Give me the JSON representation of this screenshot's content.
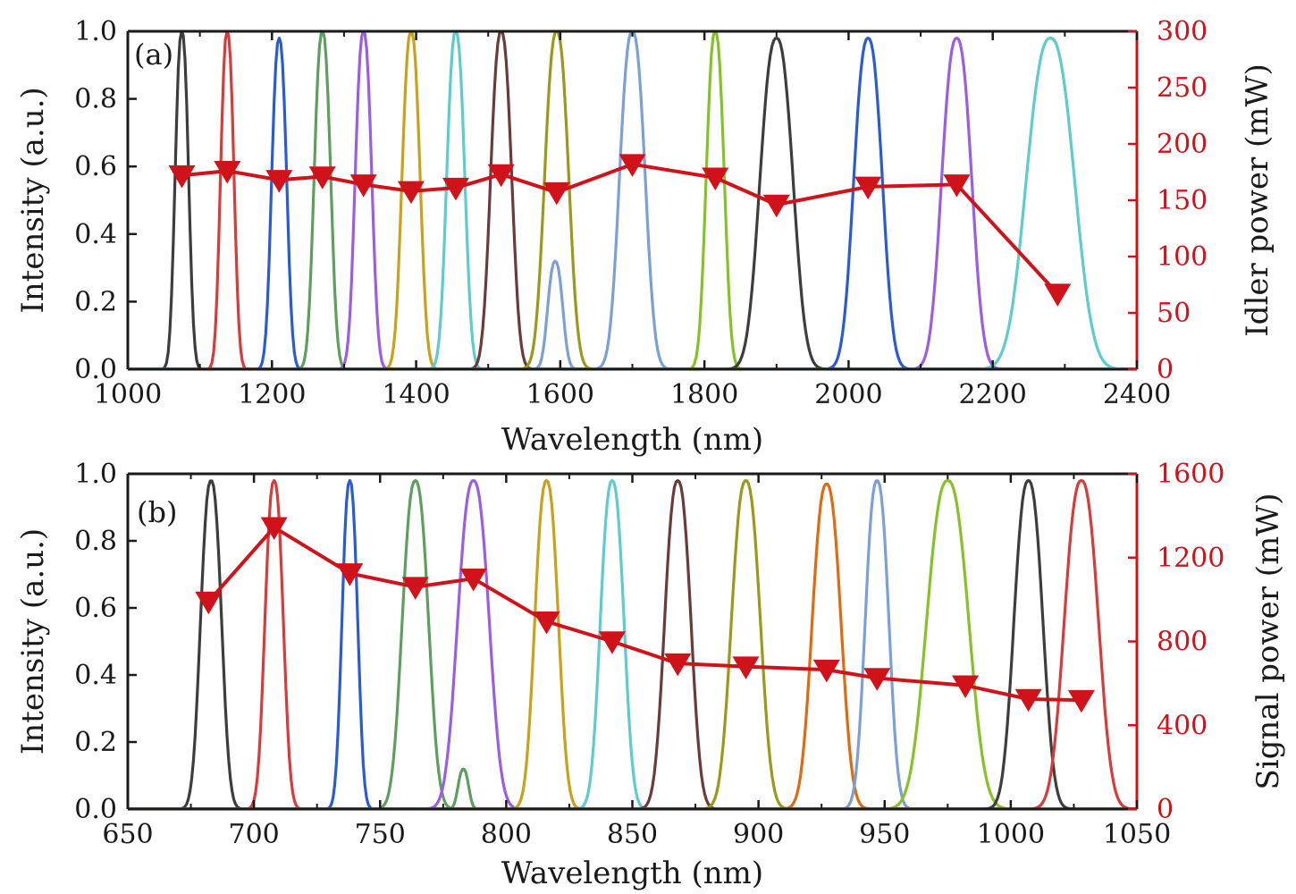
{
  "colors": {
    "axis": "#1a1a1a",
    "power": "#d0121b",
    "spectra": [
      "#3d3d3d",
      "#d93a3a",
      "#2a5bd7",
      "#5e9e5e",
      "#9b5de5",
      "#c9a11b",
      "#5ccccc",
      "#6b3a3a",
      "#9a9a1a",
      "#7aa0d6",
      "#86c226",
      "#e06a10"
    ]
  },
  "chart_data": [
    {
      "panel": "(a)",
      "type": "line",
      "xlabel": "Wavelength (nm)",
      "ylabel": "Intensity (a.u.)",
      "y2label": "Idler power (mW)",
      "xlim": [
        1000,
        2400
      ],
      "ylim": [
        0,
        1.0
      ],
      "y2lim": [
        0,
        300
      ],
      "xticks": [
        "1000",
        "1200",
        "1400",
        "1600",
        "1800",
        "2000",
        "2200",
        "2400"
      ],
      "yticks": [
        "0.0",
        "0.2",
        "0.4",
        "0.6",
        "0.8",
        "1.0"
      ],
      "y2ticks": [
        "0",
        "50",
        "100",
        "150",
        "200",
        "250",
        "300"
      ],
      "spectra": [
        {
          "center": 1075,
          "width": 9,
          "peak": 1.0,
          "color": "#3d3d3d"
        },
        {
          "center": 1138,
          "width": 9,
          "peak": 1.0,
          "color": "#d93a3a"
        },
        {
          "center": 1210,
          "width": 10,
          "peak": 0.98,
          "color": "#2a5bd7"
        },
        {
          "center": 1270,
          "width": 11,
          "peak": 1.0,
          "color": "#5e9e5e"
        },
        {
          "center": 1327,
          "width": 11,
          "peak": 1.0,
          "color": "#9b5de5"
        },
        {
          "center": 1393,
          "width": 12,
          "peak": 1.0,
          "color": "#c9a11b"
        },
        {
          "center": 1455,
          "width": 12,
          "peak": 1.0,
          "color": "#5ccccc"
        },
        {
          "center": 1518,
          "width": 14,
          "peak": 1.0,
          "color": "#6b3a3a"
        },
        {
          "center": 1595,
          "width": 16,
          "peak": 1.0,
          "color": "#9a9a1a"
        },
        {
          "center": 1593,
          "width": 10,
          "peak": 0.32,
          "color": "#7aa0d6"
        },
        {
          "center": 1700,
          "width": 17,
          "peak": 1.0,
          "color": "#7aa0d6"
        },
        {
          "center": 1815,
          "width": 12,
          "peak": 1.0,
          "color": "#86c226"
        },
        {
          "center": 1900,
          "width": 22,
          "peak": 0.98,
          "color": "#3d3d3d"
        },
        {
          "center": 2027,
          "width": 19,
          "peak": 0.98,
          "color": "#2a5bd7"
        },
        {
          "center": 2150,
          "width": 20,
          "peak": 0.98,
          "color": "#9b5de5"
        },
        {
          "center": 2280,
          "width": 32,
          "peak": 0.98,
          "color": "#5ccccc"
        }
      ],
      "power_series": {
        "name": "Idler power",
        "x": [
          1075,
          1138,
          1210,
          1270,
          1327,
          1393,
          1455,
          1518,
          1595,
          1700,
          1815,
          1900,
          2027,
          2150,
          2290
        ],
        "y": [
          172,
          176,
          168,
          171,
          164,
          158,
          161,
          173,
          157,
          182,
          170,
          146,
          162,
          164,
          67
        ]
      }
    },
    {
      "panel": "(b)",
      "type": "line",
      "xlabel": "Wavelength (nm)",
      "ylabel": "Intensity (a.u.)",
      "y2label": "Signal power (mW)",
      "xlim": [
        650,
        1050
      ],
      "ylim": [
        0,
        1.0
      ],
      "y2lim": [
        0,
        1600
      ],
      "xticks": [
        "650",
        "700",
        "750",
        "800",
        "850",
        "900",
        "950",
        "1000",
        "1050"
      ],
      "yticks": [
        "0.0",
        "0.2",
        "0.4",
        "0.6",
        "0.8",
        "1.0"
      ],
      "y2ticks": [
        "0",
        "400",
        "800",
        "1200",
        "1600"
      ],
      "spectra": [
        {
          "center": 683,
          "width": 4.0,
          "peak": 0.98,
          "color": "#3d3d3d"
        },
        {
          "center": 708,
          "width": 3.5,
          "peak": 0.98,
          "color": "#d93a3a"
        },
        {
          "center": 738,
          "width": 3.0,
          "peak": 0.98,
          "color": "#2a5bd7"
        },
        {
          "center": 764,
          "width": 5.0,
          "peak": 0.98,
          "color": "#5e9e5e"
        },
        {
          "center": 783,
          "width": 2.0,
          "peak": 0.12,
          "color": "#5e9e5e"
        },
        {
          "center": 787,
          "width": 6.0,
          "peak": 0.98,
          "color": "#9b5de5"
        },
        {
          "center": 816,
          "width": 4.5,
          "peak": 0.98,
          "color": "#c9a11b"
        },
        {
          "center": 842,
          "width": 4.5,
          "peak": 0.98,
          "color": "#5ccccc"
        },
        {
          "center": 868,
          "width": 5.0,
          "peak": 0.98,
          "color": "#6b3a3a"
        },
        {
          "center": 895,
          "width": 5.5,
          "peak": 0.98,
          "color": "#9a9a1a"
        },
        {
          "center": 927,
          "width": 5.5,
          "peak": 0.97,
          "color": "#e06a10"
        },
        {
          "center": 947,
          "width": 4.5,
          "peak": 0.98,
          "color": "#7aa0d6"
        },
        {
          "center": 975,
          "width": 8.0,
          "peak": 0.98,
          "color": "#86c226"
        },
        {
          "center": 1007,
          "width": 5.5,
          "peak": 0.98,
          "color": "#3d3d3d"
        },
        {
          "center": 1028,
          "width": 6.5,
          "peak": 0.98,
          "color": "#d93a3a"
        }
      ],
      "power_series": {
        "name": "Signal power",
        "x": [
          682,
          708,
          738,
          764,
          787,
          816,
          842,
          868,
          895,
          927,
          947,
          982,
          1007,
          1028
        ],
        "y": [
          990,
          1345,
          1125,
          1060,
          1100,
          895,
          800,
          695,
          680,
          665,
          625,
          590,
          525,
          520
        ]
      }
    }
  ]
}
